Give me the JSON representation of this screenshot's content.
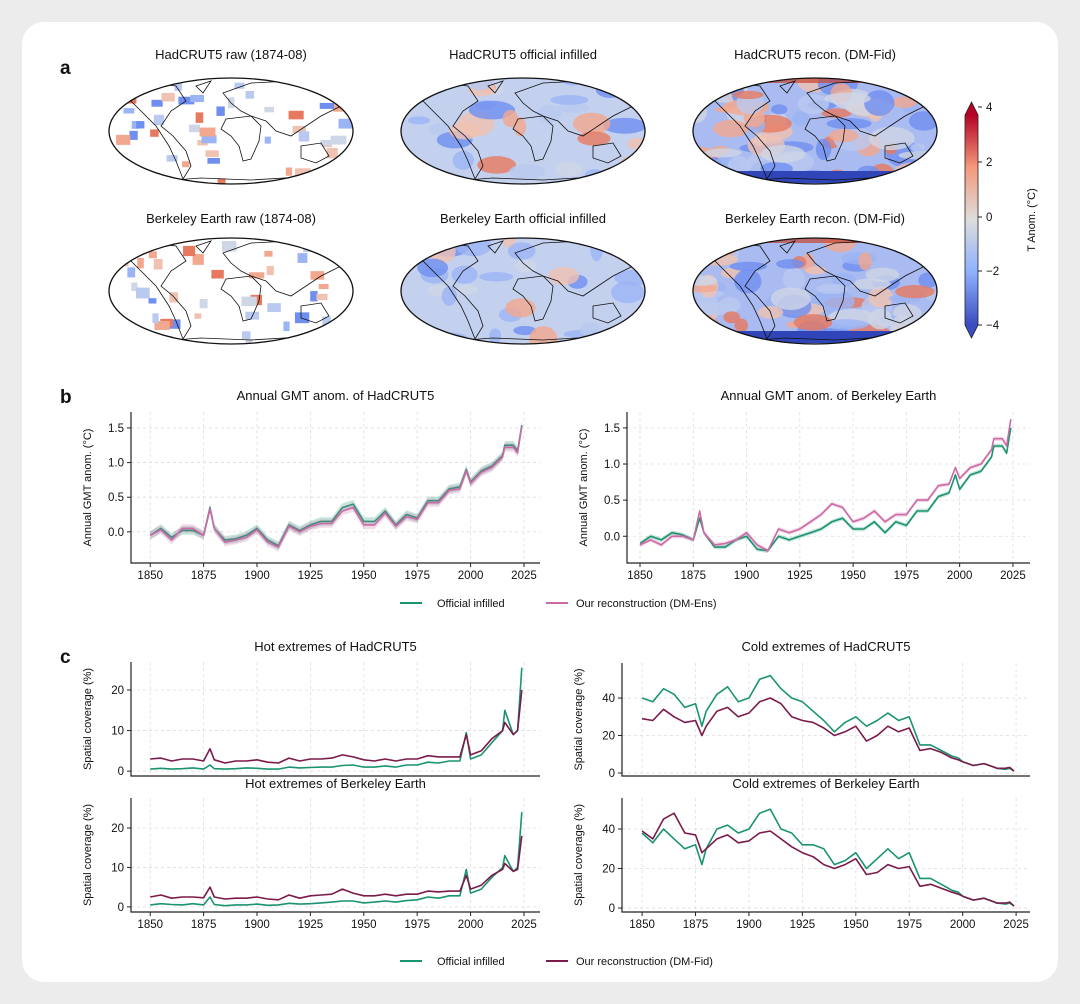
{
  "panel_labels": {
    "a": "a",
    "b": "b",
    "c": "c"
  },
  "maps": [
    {
      "title": "HadCRUT5 raw (1874-08)",
      "kind": "raw"
    },
    {
      "title": "HadCRUT5 official infilled",
      "kind": "infilled"
    },
    {
      "title": "HadCRUT5 recon. (DM-Fid)",
      "kind": "recon"
    },
    {
      "title": "Berkeley Earth raw (1874-08)",
      "kind": "raw"
    },
    {
      "title": "Berkeley Earth official infilled",
      "kind": "infilled"
    },
    {
      "title": "Berkeley Earth recon. (DM-Fid)",
      "kind": "recon"
    }
  ],
  "colorbar": {
    "label": "T Anom. (°C)",
    "ticks": [
      "4",
      "2",
      "0",
      "−2",
      "−4"
    ],
    "range": [
      -4,
      4
    ],
    "colors": [
      "#3b4cc0",
      "#dddddd",
      "#b40426"
    ]
  },
  "legend_b": {
    "items": [
      {
        "label": "Official infilled",
        "color": "#1a9470"
      },
      {
        "label": "Our reconstruction (DM-Ens)",
        "color": "#cc6aa6"
      }
    ]
  },
  "legend_c": {
    "items": [
      {
        "label": "Official infilled",
        "color": "#1a9470"
      },
      {
        "label": "Our reconstruction (DM-Fid)",
        "color": "#7b1a4b"
      }
    ]
  },
  "chart_data": [
    {
      "type": "line",
      "title": "Annual GMT anom. of HadCRUT5",
      "ylabel": "Annual GMT anom. (°C)",
      "xticks": [
        "1850",
        "1875",
        "1900",
        "1925",
        "1950",
        "1975",
        "2000",
        "2025"
      ],
      "yticks": [
        "0.0",
        "0.5",
        "1.0",
        "1.5"
      ],
      "grid": true,
      "ylim": [
        -0.45,
        1.73
      ],
      "xlim": [
        1841,
        2032.5
      ],
      "series": [
        {
          "name": "Official infilled",
          "color": "#1a9470",
          "values": [
            -0.05,
            0.05,
            -0.08,
            0.02,
            0.02,
            -0.05,
            0.35,
            0.05,
            -0.12,
            -0.1,
            -0.05,
            0.05,
            -0.12,
            -0.2,
            0.1,
            0.02,
            0.1,
            0.15,
            0.15,
            0.35,
            0.4,
            0.15,
            0.15,
            0.3,
            0.1,
            0.25,
            0.2,
            0.45,
            0.45,
            0.62,
            0.65,
            0.9,
            0.72,
            0.88,
            0.95,
            1.1,
            1.25,
            1.25,
            1.17,
            1.54
          ]
        },
        {
          "name": "Our reconstruction (DM-Ens)",
          "color": "#cc6aa6",
          "values": [
            -0.05,
            0.03,
            -0.12,
            0.05,
            0.05,
            -0.05,
            0.33,
            0.05,
            -0.15,
            -0.12,
            -0.08,
            0.03,
            -0.15,
            -0.22,
            0.08,
            0.0,
            0.08,
            0.12,
            0.12,
            0.3,
            0.35,
            0.1,
            0.1,
            0.27,
            0.08,
            0.22,
            0.18,
            0.42,
            0.42,
            0.6,
            0.62,
            0.88,
            0.7,
            0.86,
            0.93,
            1.08,
            1.22,
            1.22,
            1.14,
            1.52
          ]
        }
      ]
    },
    {
      "type": "line",
      "title": "Annual GMT anom. of Berkeley Earth",
      "ylabel": "Annual GMT anom. (°C)",
      "xticks": [
        "1850",
        "1875",
        "1900",
        "1925",
        "1950",
        "1975",
        "2000",
        "2025"
      ],
      "yticks": [
        "0.0",
        "0.5",
        "1.0",
        "1.5"
      ],
      "grid": true,
      "ylim": [
        -0.37,
        1.72
      ],
      "xlim": [
        1843.9,
        2033
      ],
      "series": [
        {
          "name": "Official infilled",
          "color": "#1a9470",
          "values": [
            -0.1,
            0.0,
            -0.05,
            0.05,
            0.02,
            -0.05,
            0.25,
            0.05,
            -0.15,
            -0.15,
            -0.05,
            0.0,
            -0.18,
            -0.2,
            0.0,
            -0.05,
            0.0,
            0.05,
            0.1,
            0.2,
            0.25,
            0.1,
            0.1,
            0.2,
            0.05,
            0.2,
            0.15,
            0.35,
            0.35,
            0.55,
            0.6,
            0.85,
            0.65,
            0.85,
            0.9,
            1.1,
            1.25,
            1.25,
            1.15,
            1.5
          ]
        },
        {
          "name": "Our reconstruction (DM-Ens)",
          "color": "#cc6aa6",
          "values": [
            -0.12,
            -0.05,
            -0.12,
            0.0,
            0.0,
            -0.05,
            0.35,
            0.05,
            -0.12,
            -0.1,
            -0.05,
            0.05,
            -0.12,
            -0.2,
            0.1,
            0.05,
            0.1,
            0.2,
            0.3,
            0.45,
            0.4,
            0.2,
            0.25,
            0.35,
            0.2,
            0.3,
            0.3,
            0.5,
            0.5,
            0.7,
            0.72,
            0.95,
            0.8,
            0.95,
            1.0,
            1.2,
            1.35,
            1.35,
            1.25,
            1.62
          ]
        }
      ]
    },
    {
      "type": "line",
      "title": "Hot extremes of HadCRUT5",
      "ylabel": "Spatial coverage (%)",
      "xticks": [],
      "yticks": [
        "0",
        "10",
        "20"
      ],
      "grid": true,
      "ylim": [
        -1.2,
        26.9
      ],
      "xlim": [
        1841,
        2032.5
      ],
      "series": [
        {
          "name": "Official infilled",
          "color": "#1a9470",
          "values": [
            0.5,
            0.7,
            0.5,
            0.6,
            0.8,
            0.5,
            1.5,
            0.6,
            0.5,
            0.6,
            0.8,
            0.7,
            0.5,
            0.5,
            1.0,
            0.8,
            0.9,
            1.0,
            1.0,
            1.4,
            1.5,
            1.0,
            1.0,
            1.3,
            1.0,
            1.5,
            1.5,
            2.2,
            2.0,
            2.5,
            2.5,
            9.5,
            3.0,
            4.0,
            7.0,
            10.0,
            15.0,
            9.0,
            10.0,
            25.5
          ]
        },
        {
          "name": "Our reconstruction (DM-Fid)",
          "color": "#7b1a4b",
          "values": [
            3.0,
            3.2,
            2.5,
            3.0,
            3.0,
            2.5,
            5.5,
            2.8,
            2.0,
            2.5,
            2.5,
            2.8,
            2.2,
            2.0,
            3.2,
            2.5,
            3.0,
            3.0,
            3.2,
            4.0,
            3.5,
            2.8,
            2.5,
            3.0,
            2.5,
            3.0,
            3.0,
            3.8,
            3.5,
            3.5,
            3.5,
            9.0,
            4.0,
            5.0,
            8.0,
            10.0,
            12.0,
            9.0,
            10.0,
            20.0
          ]
        }
      ]
    },
    {
      "type": "line",
      "title": "Cold extremes of HadCRUT5",
      "ylabel": "Spatial coverage (%)",
      "xticks": [],
      "yticks": [
        "0",
        "20",
        "40"
      ],
      "grid": true,
      "ylim": [
        -1.6,
        58.7
      ],
      "xlim": [
        1840.6,
        2031.5
      ],
      "series": [
        {
          "name": "Official infilled",
          "color": "#1a9470",
          "values": [
            40,
            38,
            45,
            42,
            35,
            37,
            25,
            33,
            42,
            46,
            38,
            40,
            50,
            52,
            45,
            40,
            38,
            33,
            28,
            22,
            27,
            30,
            25,
            28,
            32,
            28,
            30,
            15,
            15,
            12,
            9,
            8,
            6,
            4,
            5,
            3,
            2.5,
            2,
            2.5,
            1
          ]
        },
        {
          "name": "Our reconstruction (DM-Fid)",
          "color": "#7b1a4b",
          "values": [
            29,
            28,
            34,
            30,
            27,
            28,
            20,
            25,
            33,
            35,
            30,
            32,
            38,
            40,
            37,
            30,
            28,
            27,
            24,
            20,
            22,
            25,
            17,
            20,
            25,
            22,
            24,
            12,
            13,
            11,
            8,
            7,
            6,
            4,
            5,
            3,
            2.5,
            2.5,
            3,
            1
          ]
        }
      ]
    },
    {
      "type": "line",
      "title": "Hot extremes of Berkeley Earth",
      "ylabel": "Spatial coverage (%)",
      "xticks": [
        "1850",
        "1875",
        "1900",
        "1925",
        "1950",
        "1975",
        "2000",
        "2025"
      ],
      "yticks": [
        "0",
        "10",
        "20"
      ],
      "grid": true,
      "ylim": [
        -1.3,
        27.6
      ],
      "xlim": [
        1841,
        2032.5
      ],
      "series": [
        {
          "name": "Official infilled",
          "color": "#1a9470",
          "values": [
            0.5,
            0.8,
            0.6,
            0.5,
            0.8,
            0.5,
            2.5,
            0.6,
            0.3,
            0.5,
            0.5,
            0.7,
            0.4,
            0.5,
            0.9,
            0.7,
            0.8,
            1.0,
            1.2,
            1.5,
            1.5,
            1.0,
            1.2,
            1.5,
            1.2,
            1.6,
            1.8,
            2.5,
            2.2,
            2.8,
            2.8,
            9.5,
            3.5,
            4.5,
            7.5,
            10.0,
            13.0,
            9.0,
            10.0,
            24.0
          ]
        },
        {
          "name": "Our reconstruction (DM-Fid)",
          "color": "#7b1a4b",
          "values": [
            2.5,
            3.0,
            2.2,
            2.5,
            2.5,
            2.3,
            5.0,
            2.5,
            2.0,
            2.2,
            2.2,
            2.5,
            2.0,
            1.8,
            3.0,
            2.2,
            2.8,
            3.0,
            3.2,
            4.5,
            3.5,
            2.8,
            2.8,
            3.2,
            2.8,
            3.2,
            3.2,
            4.0,
            3.8,
            4.0,
            4.0,
            8.0,
            4.5,
            5.5,
            8.0,
            9.5,
            11.0,
            9.0,
            9.5,
            18.0
          ]
        }
      ]
    },
    {
      "type": "line",
      "title": "Cold extremes of Berkeley Earth",
      "ylabel": "Spatial coverage (%)",
      "xticks": [
        "1850",
        "1875",
        "1900",
        "1925",
        "1950",
        "1975",
        "2000",
        "2025"
      ],
      "yticks": [
        "0",
        "20",
        "40"
      ],
      "grid": true,
      "ylim": [
        -2,
        55.7
      ],
      "xlim": [
        1840.6,
        2031.5
      ],
      "series": [
        {
          "name": "Official infilled",
          "color": "#1a9470",
          "values": [
            38,
            33,
            40,
            35,
            30,
            32,
            22,
            30,
            40,
            42,
            38,
            40,
            48,
            50,
            40,
            38,
            32,
            32,
            30,
            22,
            24,
            28,
            20,
            25,
            30,
            25,
            28,
            15,
            15,
            12,
            9,
            8,
            6,
            4,
            5,
            3,
            2.5,
            2,
            2.5,
            1
          ]
        },
        {
          "name": "Our reconstruction (DM-Fid)",
          "color": "#7b1a4b",
          "values": [
            39,
            35,
            45,
            48,
            38,
            37,
            28,
            30,
            35,
            37,
            33,
            34,
            38,
            39,
            35,
            31,
            28,
            26,
            22,
            20,
            22,
            25,
            17,
            18,
            22,
            20,
            21,
            11,
            12,
            10,
            8,
            7,
            6,
            4,
            5,
            3,
            2.5,
            2.5,
            3,
            1
          ]
        }
      ]
    }
  ],
  "years": [
    1850,
    1855,
    1860,
    1865,
    1870,
    1875,
    1878,
    1880,
    1885,
    1890,
    1895,
    1900,
    1905,
    1910,
    1915,
    1920,
    1925,
    1930,
    1935,
    1940,
    1945,
    1950,
    1955,
    1960,
    1965,
    1970,
    1975,
    1980,
    1985,
    1990,
    1995,
    1998,
    2000,
    2005,
    2010,
    2015,
    2016,
    2020,
    2022,
    2024
  ]
}
